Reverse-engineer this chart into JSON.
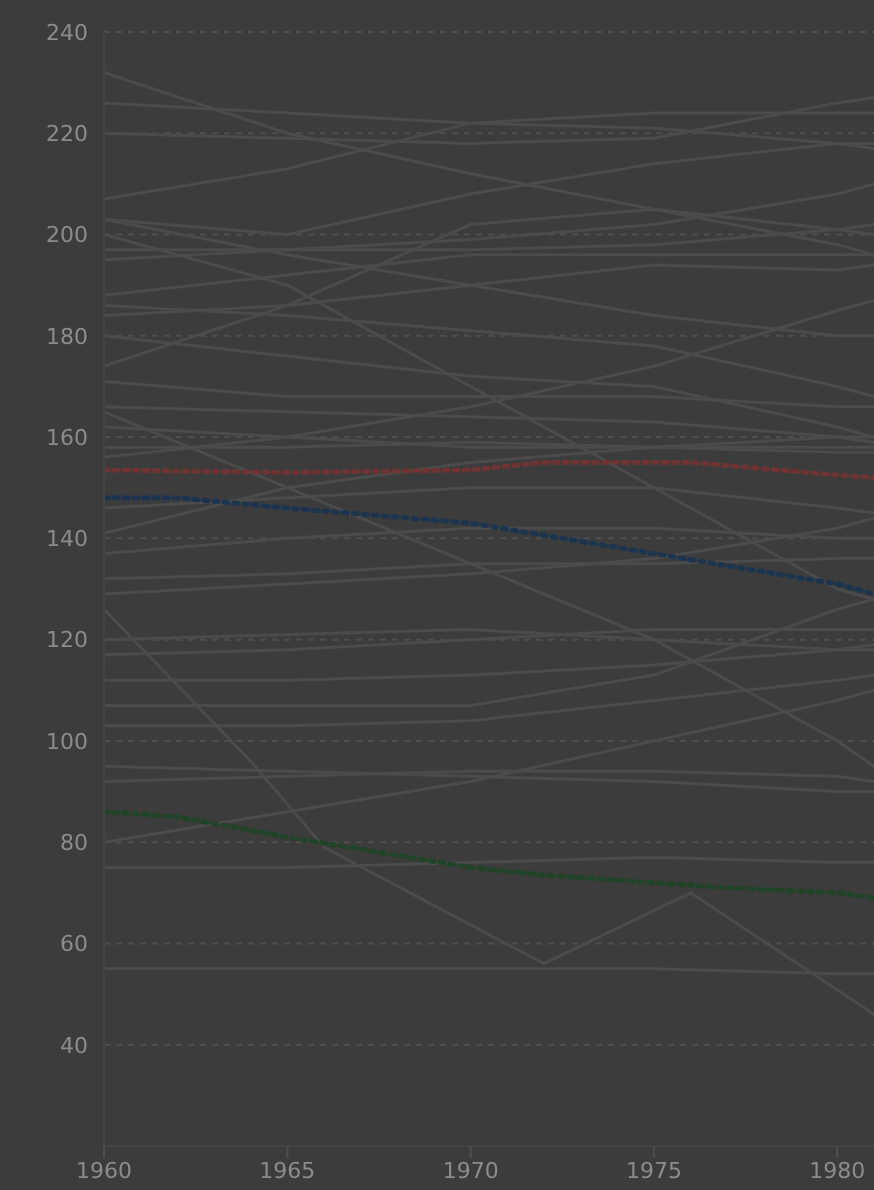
{
  "chart_data": {
    "type": "line",
    "xlim": [
      1960,
      1981
    ],
    "xticks": [
      1960,
      1965,
      1970,
      1975,
      1980
    ],
    "ylim": [
      20,
      240
    ],
    "yticks": [
      40,
      60,
      80,
      100,
      120,
      140,
      160,
      180,
      200,
      220,
      240
    ],
    "grid": "y",
    "marker": "none",
    "series": [
      {
        "color": "#4b4b4b",
        "x": [
          1960,
          1965,
          1970,
          1975,
          1980,
          1981
        ],
        "values": [
          232,
          220,
          212,
          205,
          198,
          196
        ]
      },
      {
        "color": "#4b4b4b",
        "x": [
          1960,
          1965,
          1970,
          1975,
          1980,
          1981
        ],
        "values": [
          226,
          224,
          222,
          221,
          218,
          217
        ]
      },
      {
        "color": "#4b4b4b",
        "x": [
          1960,
          1965,
          1970,
          1975,
          1980,
          1981
        ],
        "values": [
          220,
          219,
          218,
          219,
          226,
          227
        ]
      },
      {
        "color": "#4b4b4b",
        "x": [
          1960,
          1965,
          1970,
          1975,
          1980,
          1981
        ],
        "values": [
          207,
          213,
          222,
          224,
          224,
          224
        ]
      },
      {
        "color": "#4b4b4b",
        "x": [
          1960,
          1965,
          1970,
          1975,
          1980,
          1981
        ],
        "values": [
          203,
          200,
          208,
          214,
          218,
          218
        ]
      },
      {
        "color": "#4b4b4b",
        "x": [
          1960,
          1965,
          1970,
          1975,
          1980,
          1981
        ],
        "values": [
          203,
          196,
          190,
          184,
          180,
          180
        ]
      },
      {
        "color": "#4b4b4b",
        "x": [
          1960,
          1965,
          1970,
          1975,
          1980,
          1981
        ],
        "values": [
          197,
          197,
          197,
          198,
          201,
          202
        ]
      },
      {
        "color": "#4b4b4b",
        "x": [
          1960,
          1965,
          1970,
          1975,
          1980,
          1981
        ],
        "values": [
          195,
          197,
          199,
          202,
          208,
          210
        ]
      },
      {
        "color": "#4b4b4b",
        "x": [
          1960,
          1965,
          1970,
          1975,
          1980,
          1981
        ],
        "values": [
          188,
          192,
          196,
          196,
          196,
          196
        ]
      },
      {
        "color": "#4b4b4b",
        "x": [
          1960,
          1965,
          1970,
          1975,
          1980,
          1981
        ],
        "values": [
          186,
          184,
          181,
          178,
          170,
          168
        ]
      },
      {
        "color": "#4b4b4b",
        "x": [
          1960,
          1965,
          1970,
          1975,
          1980,
          1981
        ],
        "values": [
          184,
          186,
          190,
          194,
          193,
          194
        ]
      },
      {
        "color": "#4b4b4b",
        "x": [
          1960,
          1965,
          1970,
          1975,
          1980,
          1981
        ],
        "values": [
          180,
          176,
          172,
          170,
          162,
          160
        ]
      },
      {
        "color": "#4b4b4b",
        "x": [
          1960,
          1965,
          1970,
          1975,
          1980,
          1981
        ],
        "values": [
          174,
          186,
          202,
          205,
          201,
          200
        ]
      },
      {
        "color": "#4b4b4b",
        "x": [
          1960,
          1965,
          1970,
          1975,
          1980,
          1981
        ],
        "values": [
          171,
          168,
          168,
          168,
          166,
          166
        ]
      },
      {
        "color": "#4b4b4b",
        "x": [
          1960,
          1965,
          1970,
          1975,
          1980,
          1981
        ],
        "values": [
          166,
          165,
          164,
          163,
          160,
          159
        ]
      },
      {
        "color": "#4b4b4b",
        "x": [
          1960,
          1965,
          1970,
          1975,
          1980,
          1981
        ],
        "values": [
          162,
          160,
          158,
          158,
          157,
          157
        ]
      },
      {
        "color": "#4b4b4b",
        "x": [
          1960,
          1965,
          1970,
          1975,
          1980,
          1981
        ],
        "values": [
          158,
          158,
          159,
          158,
          158,
          158
        ]
      },
      {
        "color": "#4b4b4b",
        "x": [
          1960,
          1965,
          1970,
          1975,
          1980,
          1981
        ],
        "values": [
          156,
          160,
          166,
          174,
          185,
          187
        ]
      },
      {
        "color": "#4b4b4b",
        "x": [
          1960,
          1965,
          1970,
          1975,
          1980,
          1981
        ],
        "values": [
          146,
          148,
          150,
          150,
          146,
          145
        ]
      },
      {
        "color": "#4b4b4b",
        "x": [
          1960,
          1965,
          1970,
          1975,
          1980,
          1981
        ],
        "values": [
          141,
          150,
          155,
          158,
          160,
          160
        ]
      },
      {
        "color": "#4b4b4b",
        "x": [
          1960,
          1965,
          1970,
          1975,
          1980,
          1981
        ],
        "values": [
          137,
          140,
          142,
          142,
          140,
          140
        ]
      },
      {
        "color": "#4b4b4b",
        "x": [
          1960,
          1965,
          1970,
          1975,
          1980,
          1981
        ],
        "values": [
          132,
          133,
          135,
          135,
          136,
          136
        ]
      },
      {
        "color": "#4b4b4b",
        "x": [
          1960,
          1965,
          1970,
          1975,
          1980,
          1981
        ],
        "values": [
          129,
          131,
          133,
          136,
          142,
          144
        ]
      },
      {
        "color": "#4b4b4b",
        "x": [
          1960,
          1964,
          1966,
          1972,
          1976,
          1981
        ],
        "values": [
          126,
          96,
          79,
          56,
          70,
          46
        ]
      },
      {
        "color": "#4b4b4b",
        "x": [
          1960,
          1965,
          1970,
          1975,
          1980,
          1981
        ],
        "values": [
          120,
          121,
          122,
          120,
          118,
          118
        ]
      },
      {
        "color": "#4b4b4b",
        "x": [
          1960,
          1965,
          1970,
          1975,
          1980,
          1981
        ],
        "values": [
          117,
          118,
          120,
          122,
          122,
          122
        ]
      },
      {
        "color": "#4b4b4b",
        "x": [
          1960,
          1965,
          1970,
          1975,
          1980,
          1981
        ],
        "values": [
          112,
          112,
          113,
          115,
          118,
          119
        ]
      },
      {
        "color": "#4b4b4b",
        "x": [
          1960,
          1965,
          1970,
          1975,
          1980,
          1981
        ],
        "values": [
          107,
          107,
          107,
          113,
          126,
          128
        ]
      },
      {
        "color": "#4b4b4b",
        "x": [
          1960,
          1965,
          1970,
          1975,
          1980,
          1981
        ],
        "values": [
          103,
          103,
          104,
          108,
          112,
          113
        ]
      },
      {
        "color": "#4b4b4b",
        "x": [
          1960,
          1965,
          1970,
          1975,
          1980,
          1981
        ],
        "values": [
          95,
          94,
          93,
          92,
          90,
          90
        ]
      },
      {
        "color": "#4b4b4b",
        "x": [
          1960,
          1965,
          1970,
          1975,
          1980,
          1981
        ],
        "values": [
          92,
          93,
          94,
          94,
          93,
          92
        ]
      },
      {
        "color": "#4b4b4b",
        "x": [
          1960,
          1965,
          1970,
          1975,
          1980,
          1981
        ],
        "values": [
          80,
          86,
          92,
          100,
          108,
          110
        ]
      },
      {
        "color": "#4b4b4b",
        "x": [
          1960,
          1965,
          1970,
          1975,
          1980,
          1981
        ],
        "values": [
          75,
          75,
          76,
          77,
          76,
          76
        ]
      },
      {
        "color": "#4b4b4b",
        "x": [
          1960,
          1965,
          1970,
          1975,
          1980,
          1981
        ],
        "values": [
          55,
          55,
          55,
          55,
          54,
          54
        ]
      },
      {
        "color": "#4b4b4b",
        "x": [
          1960,
          1965,
          1970,
          1975,
          1980,
          1981
        ],
        "values": [
          165,
          150,
          135,
          120,
          100,
          95
        ]
      },
      {
        "color": "#4b4b4b",
        "x": [
          1960,
          1965,
          1970,
          1975,
          1980,
          1981
        ],
        "values": [
          200,
          190,
          170,
          150,
          130,
          128
        ]
      },
      {
        "color": "#6e3434",
        "line_style": "dotted",
        "x": [
          1960,
          1965,
          1970,
          1972,
          1976,
          1980,
          1981
        ],
        "values": [
          153.5,
          153,
          153.5,
          155,
          155,
          152.5,
          152
        ]
      },
      {
        "color": "#1b3550",
        "line_style": "dotted",
        "x": [
          1960,
          1962,
          1965,
          1970,
          1975,
          1980,
          1981
        ],
        "values": [
          148,
          148,
          146,
          143,
          137,
          131,
          129
        ]
      },
      {
        "color": "#1f4426",
        "line_style": "dotted",
        "x": [
          1960,
          1962,
          1965,
          1970,
          1972,
          1975,
          1977,
          1980,
          1981
        ],
        "values": [
          86,
          85,
          81,
          75,
          73.5,
          72,
          71,
          70,
          69
        ]
      }
    ]
  }
}
